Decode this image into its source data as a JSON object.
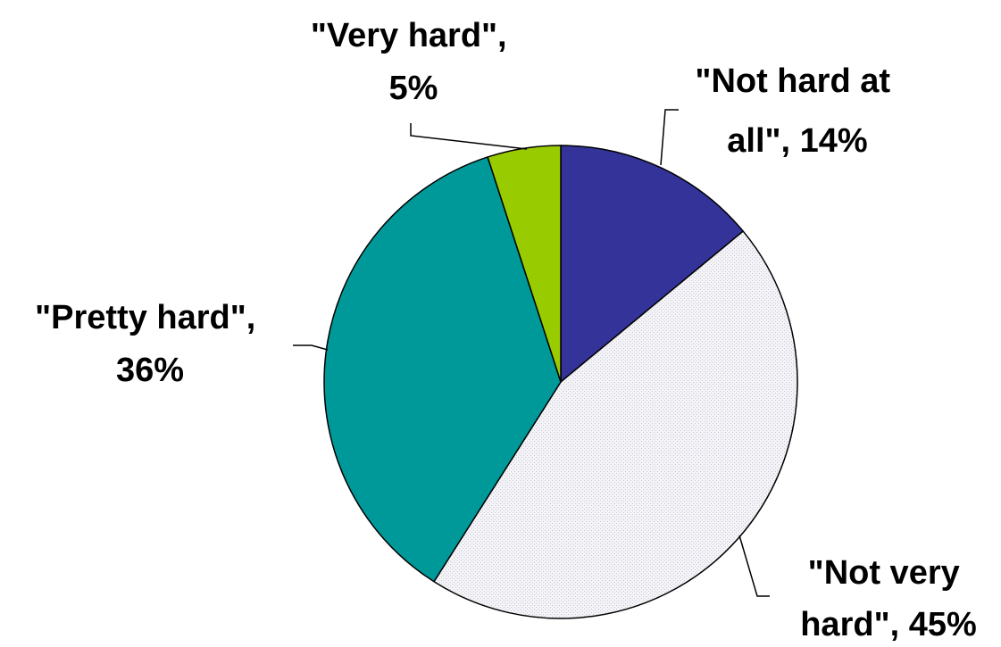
{
  "chart_data": {
    "type": "pie",
    "title": "",
    "start_angle_deg": 0,
    "direction": "clockwise",
    "slices": [
      {
        "name": "\"Not hard at all\"",
        "value": 14,
        "value_label": "14%",
        "color": "#333399",
        "label_lines": [
          "\"Not hard at",
          "all\", 14%"
        ]
      },
      {
        "name": "\"Not very hard\"",
        "value": 45,
        "value_label": "45%",
        "color": "#F0F0F4",
        "label_lines": [
          "\"Not very",
          "hard\", 45%"
        ]
      },
      {
        "name": "\"Pretty hard\"",
        "value": 36,
        "value_label": "36%",
        "color": "#009999",
        "label_lines": [
          "\"Pretty hard\",",
          "36%"
        ]
      },
      {
        "name": "\"Very hard\"",
        "value": 5,
        "value_label": "5%",
        "color": "#99CC00",
        "label_lines": [
          "\"Very hard\",",
          "5%"
        ]
      }
    ]
  }
}
